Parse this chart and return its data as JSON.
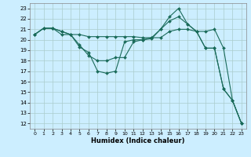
{
  "xlabel": "Humidex (Indice chaleur)",
  "background_color": "#cceeff",
  "grid_color": "#aacccc",
  "line_color": "#1a6b5a",
  "xlim": [
    -0.5,
    23.5
  ],
  "ylim": [
    11.5,
    23.5
  ],
  "yticks": [
    12,
    13,
    14,
    15,
    16,
    17,
    18,
    19,
    20,
    21,
    22,
    23
  ],
  "xticks": [
    0,
    1,
    2,
    3,
    4,
    5,
    6,
    7,
    8,
    9,
    10,
    11,
    12,
    13,
    14,
    15,
    16,
    17,
    18,
    19,
    20,
    21,
    22,
    23
  ],
  "series": [
    {
      "x": [
        0,
        1,
        2,
        3,
        4,
        5,
        6,
        7,
        8,
        9,
        10,
        11,
        12,
        13,
        14,
        15,
        16,
        17,
        18,
        19,
        20,
        21,
        22,
        23
      ],
      "y": [
        20.5,
        21.1,
        21.1,
        20.8,
        20.5,
        20.5,
        20.3,
        20.3,
        20.3,
        20.3,
        20.3,
        20.3,
        20.2,
        20.2,
        20.2,
        20.8,
        21.0,
        21.0,
        20.8,
        20.8,
        21.0,
        19.2,
        14.2,
        12.0
      ]
    },
    {
      "x": [
        0,
        1,
        2,
        3,
        4,
        5,
        6,
        7,
        8,
        9,
        10,
        11,
        12,
        13,
        14,
        15,
        16,
        17,
        18,
        19,
        20,
        21,
        22,
        23
      ],
      "y": [
        20.5,
        21.1,
        21.1,
        20.8,
        20.5,
        19.5,
        18.5,
        18.0,
        18.0,
        18.3,
        18.3,
        19.8,
        20.0,
        20.2,
        21.0,
        21.8,
        22.2,
        21.5,
        20.8,
        19.2,
        19.2,
        15.3,
        14.2,
        12.0
      ]
    },
    {
      "x": [
        0,
        1,
        2,
        3,
        4,
        5,
        6,
        7,
        8,
        9,
        10,
        11,
        12,
        13,
        14,
        15,
        16,
        17,
        18,
        19,
        20,
        21,
        22,
        23
      ],
      "y": [
        20.5,
        21.1,
        21.1,
        20.5,
        20.5,
        19.3,
        18.8,
        17.0,
        16.8,
        17.0,
        19.8,
        20.0,
        20.0,
        20.1,
        21.0,
        22.2,
        23.0,
        21.5,
        20.8,
        19.2,
        19.2,
        15.3,
        14.2,
        12.0
      ]
    }
  ]
}
